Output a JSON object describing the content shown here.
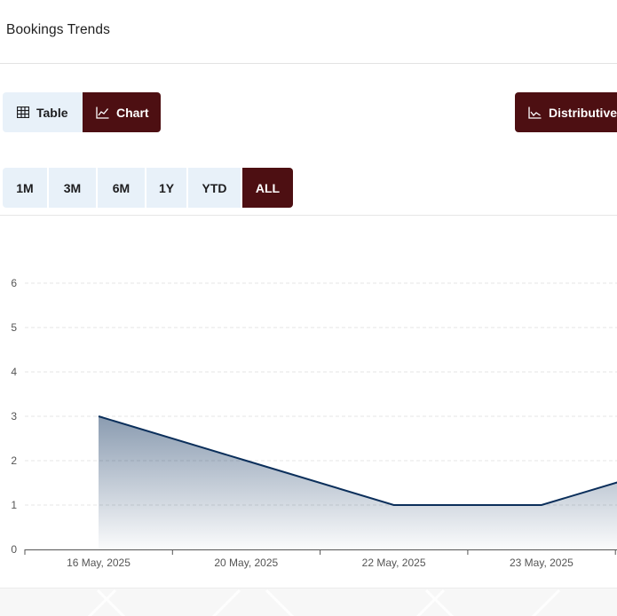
{
  "header": {
    "title": "Bookings Trends"
  },
  "view_toggle": {
    "table_label": "Table",
    "chart_label": "Chart",
    "selected": "Chart"
  },
  "distributive_label": "Distributive",
  "ranges": [
    "1M",
    "3M",
    "6M",
    "1Y",
    "YTD",
    "ALL"
  ],
  "selected_range": "ALL",
  "colors": {
    "accent": "#4d0f12",
    "inactive": "#e8f1f9",
    "line": "#0b2f5b"
  },
  "icons": {
    "table": "table-icon",
    "chart": "line-chart-icon",
    "distributive": "area-chart-icon"
  },
  "chart_data": {
    "type": "area",
    "x": [
      "16 May, 2025",
      "20 May, 2025",
      "22 May, 2025",
      "23 May, 2025"
    ],
    "y": [
      3,
      2,
      1,
      1
    ],
    "y_ticks": [
      0,
      1,
      2,
      3,
      4,
      5,
      6
    ],
    "ylim": [
      0,
      6
    ],
    "grid": true,
    "xlabel": "",
    "ylabel": ""
  }
}
